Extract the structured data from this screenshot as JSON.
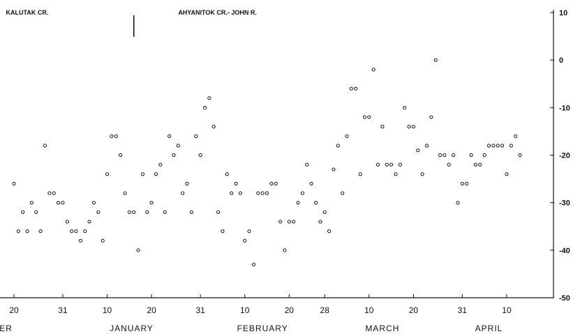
{
  "chart_data": {
    "type": "scatter",
    "title": "",
    "xlabel": "",
    "ylabel": "",
    "location_labels": [
      "KALUTAK CR.",
      "AHYANITOK CR.- JOHN R."
    ],
    "ylim": [
      -50,
      10
    ],
    "yticks": [
      10,
      0,
      -10,
      -20,
      -30,
      -40,
      -50
    ],
    "ytick_labels": [
      "10",
      "0",
      "-10",
      "-20",
      "-30",
      "-40",
      "-50"
    ],
    "xlim": [
      0,
      140
    ],
    "xticks": [
      {
        "day": 0,
        "label": "20"
      },
      {
        "day": 11,
        "label": "31"
      },
      {
        "day": 21,
        "label": "10"
      },
      {
        "day": 31,
        "label": "20"
      },
      {
        "day": 42,
        "label": "31"
      },
      {
        "day": 52,
        "label": "10"
      },
      {
        "day": 62,
        "label": "20"
      },
      {
        "day": 70,
        "label": "28"
      },
      {
        "day": 80,
        "label": "10"
      },
      {
        "day": 90,
        "label": "20"
      },
      {
        "day": 101,
        "label": "31"
      },
      {
        "day": 111,
        "label": "10"
      }
    ],
    "months": [
      {
        "label": "BER",
        "day": -2.5
      },
      {
        "label": "JANUARY",
        "day": 26.5
      },
      {
        "label": "FEBRUARY",
        "day": 56
      },
      {
        "label": "MARCH",
        "day": 83
      },
      {
        "label": "APRIL",
        "day": 107
      }
    ],
    "markers": [
      {
        "day": 27,
        "value": 9
      }
    ],
    "points": [
      {
        "x": 0,
        "y": -26
      },
      {
        "x": 1,
        "y": -36
      },
      {
        "x": 2,
        "y": -32
      },
      {
        "x": 3,
        "y": -36
      },
      {
        "x": 4,
        "y": -30
      },
      {
        "x": 5,
        "y": -32
      },
      {
        "x": 6,
        "y": -36
      },
      {
        "x": 7,
        "y": -18
      },
      {
        "x": 8,
        "y": -28
      },
      {
        "x": 9,
        "y": -28
      },
      {
        "x": 10,
        "y": -30
      },
      {
        "x": 11,
        "y": -30
      },
      {
        "x": 12,
        "y": -34
      },
      {
        "x": 13,
        "y": -36
      },
      {
        "x": 14,
        "y": -36
      },
      {
        "x": 15,
        "y": -38
      },
      {
        "x": 16,
        "y": -36
      },
      {
        "x": 17,
        "y": -34
      },
      {
        "x": 18,
        "y": -30
      },
      {
        "x": 19,
        "y": -32
      },
      {
        "x": 20,
        "y": -38
      },
      {
        "x": 21,
        "y": -24
      },
      {
        "x": 22,
        "y": -16
      },
      {
        "x": 23,
        "y": -16
      },
      {
        "x": 24,
        "y": -20
      },
      {
        "x": 25,
        "y": -28
      },
      {
        "x": 26,
        "y": -32
      },
      {
        "x": 27,
        "y": -32
      },
      {
        "x": 28,
        "y": -40
      },
      {
        "x": 29,
        "y": -24
      },
      {
        "x": 30,
        "y": -32
      },
      {
        "x": 31,
        "y": -30
      },
      {
        "x": 32,
        "y": -24
      },
      {
        "x": 33,
        "y": -22
      },
      {
        "x": 34,
        "y": -32
      },
      {
        "x": 35,
        "y": -16
      },
      {
        "x": 36,
        "y": -20
      },
      {
        "x": 37,
        "y": -18
      },
      {
        "x": 38,
        "y": -28
      },
      {
        "x": 39,
        "y": -26
      },
      {
        "x": 40,
        "y": -32
      },
      {
        "x": 41,
        "y": -16
      },
      {
        "x": 42,
        "y": -20
      },
      {
        "x": 43,
        "y": -10
      },
      {
        "x": 44,
        "y": -8
      },
      {
        "x": 45,
        "y": -14
      },
      {
        "x": 46,
        "y": -32
      },
      {
        "x": 47,
        "y": -36
      },
      {
        "x": 48,
        "y": -24
      },
      {
        "x": 49,
        "y": -28
      },
      {
        "x": 50,
        "y": -26
      },
      {
        "x": 51,
        "y": -28
      },
      {
        "x": 52,
        "y": -38
      },
      {
        "x": 53,
        "y": -36
      },
      {
        "x": 54,
        "y": -43
      },
      {
        "x": 55,
        "y": -28
      },
      {
        "x": 56,
        "y": -28
      },
      {
        "x": 57,
        "y": -28
      },
      {
        "x": 58,
        "y": -26
      },
      {
        "x": 59,
        "y": -26
      },
      {
        "x": 60,
        "y": -34
      },
      {
        "x": 61,
        "y": -40
      },
      {
        "x": 62,
        "y": -34
      },
      {
        "x": 63,
        "y": -34
      },
      {
        "x": 64,
        "y": -30
      },
      {
        "x": 65,
        "y": -28
      },
      {
        "x": 66,
        "y": -22
      },
      {
        "x": 67,
        "y": -26
      },
      {
        "x": 68,
        "y": -30
      },
      {
        "x": 69,
        "y": -34
      },
      {
        "x": 70,
        "y": -32
      },
      {
        "x": 71,
        "y": -36
      },
      {
        "x": 72,
        "y": -23
      },
      {
        "x": 73,
        "y": -18
      },
      {
        "x": 74,
        "y": -28
      },
      {
        "x": 75,
        "y": -16
      },
      {
        "x": 76,
        "y": -6
      },
      {
        "x": 77,
        "y": -6
      },
      {
        "x": 78,
        "y": -24
      },
      {
        "x": 79,
        "y": -12
      },
      {
        "x": 80,
        "y": -12
      },
      {
        "x": 81,
        "y": -2
      },
      {
        "x": 82,
        "y": -22
      },
      {
        "x": 83,
        "y": -14
      },
      {
        "x": 84,
        "y": -22
      },
      {
        "x": 85,
        "y": -22
      },
      {
        "x": 86,
        "y": -24
      },
      {
        "x": 87,
        "y": -22
      },
      {
        "x": 88,
        "y": -10
      },
      {
        "x": 89,
        "y": -14
      },
      {
        "x": 90,
        "y": -14
      },
      {
        "x": 91,
        "y": -19
      },
      {
        "x": 92,
        "y": -24
      },
      {
        "x": 93,
        "y": -18
      },
      {
        "x": 94,
        "y": -12
      },
      {
        "x": 95,
        "y": 0
      },
      {
        "x": 96,
        "y": -20
      },
      {
        "x": 97,
        "y": -20
      },
      {
        "x": 98,
        "y": -22
      },
      {
        "x": 99,
        "y": -20
      },
      {
        "x": 100,
        "y": -30
      },
      {
        "x": 101,
        "y": -26
      },
      {
        "x": 102,
        "y": -26
      },
      {
        "x": 103,
        "y": -20
      },
      {
        "x": 104,
        "y": -22
      },
      {
        "x": 105,
        "y": -22
      },
      {
        "x": 106,
        "y": -20
      },
      {
        "x": 107,
        "y": -18
      },
      {
        "x": 108,
        "y": -18
      },
      {
        "x": 109,
        "y": -18
      },
      {
        "x": 110,
        "y": -18
      },
      {
        "x": 111,
        "y": -24
      },
      {
        "x": 112,
        "y": -18
      },
      {
        "x": 113,
        "y": -16
      },
      {
        "x": 114,
        "y": -20
      }
    ],
    "grid": false,
    "legend": "none",
    "colors": {
      "ink": "#111111",
      "background": "#ffffff"
    }
  }
}
